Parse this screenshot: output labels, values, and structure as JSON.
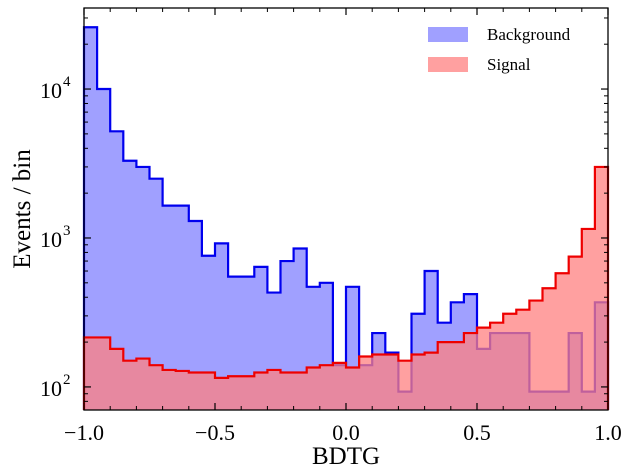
{
  "chart_data": {
    "type": "histogram",
    "xlabel": "BDTG",
    "ylabel": "Events / bin",
    "y_scale": "log",
    "xlim": [
      -1.0,
      1.0
    ],
    "ylim": [
      70,
      35000
    ],
    "x_ticks": [
      -1.0,
      -0.5,
      0.0,
      0.5,
      1.0
    ],
    "x_tick_labels": [
      "−1.0",
      "−0.5",
      "0.0",
      "0.5",
      "1.0"
    ],
    "y_ticks": [
      {
        "value": 100,
        "base": "10",
        "exp": "2"
      },
      {
        "value": 1000,
        "base": "10",
        "exp": "3"
      },
      {
        "value": 10000,
        "base": "10",
        "exp": "4"
      }
    ],
    "bin_edges_start": -1.0,
    "bin_width": 0.05,
    "legend_position": "top-right",
    "series": [
      {
        "name": "Background",
        "color": "#0000ee",
        "fill": "#8080ff",
        "values": [
          26000,
          10000,
          5200,
          3300,
          3000,
          2500,
          1650,
          1650,
          1300,
          760,
          920,
          550,
          550,
          640,
          430,
          700,
          850,
          470,
          500,
          140,
          470,
          140,
          230,
          170,
          93,
          310,
          600,
          270,
          370,
          420,
          180,
          230,
          230,
          230,
          93,
          93,
          93,
          230,
          93,
          370
        ]
      },
      {
        "name": "Signal",
        "color": "#ee0000",
        "fill": "#ff8080",
        "values": [
          215,
          215,
          180,
          150,
          155,
          140,
          130,
          128,
          125,
          125,
          115,
          118,
          118,
          125,
          130,
          125,
          125,
          135,
          140,
          145,
          135,
          160,
          165,
          165,
          150,
          165,
          170,
          200,
          200,
          230,
          250,
          270,
          310,
          330,
          380,
          460,
          580,
          750,
          1150,
          3000
        ]
      }
    ]
  }
}
